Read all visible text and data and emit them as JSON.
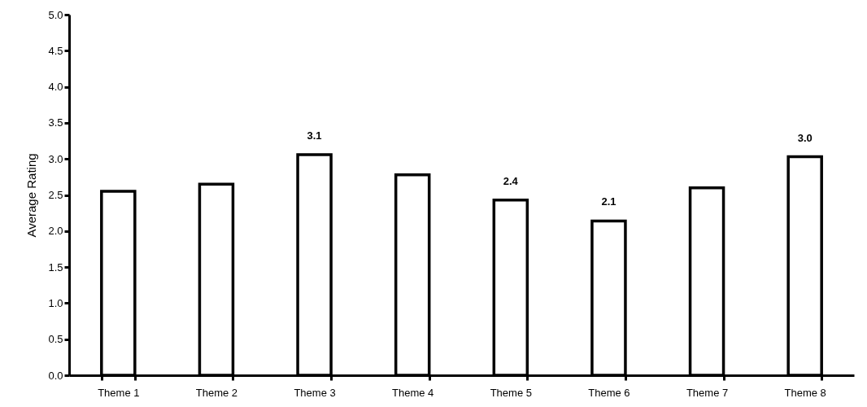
{
  "chart_data": {
    "type": "bar",
    "ylabel": "Average Rating",
    "categories": [
      "Theme 1",
      "Theme 2",
      "Theme 3",
      "Theme 4",
      "Theme 5",
      "Theme 6",
      "Theme 7",
      "Theme 8"
    ],
    "values": [
      2.55,
      2.65,
      3.06,
      2.78,
      2.43,
      2.14,
      2.6,
      3.03
    ],
    "value_labels": [
      null,
      null,
      "3.1",
      null,
      "2.4",
      "2.1",
      null,
      "3.0"
    ],
    "color": "#ffffff",
    "ylim": [
      0,
      5
    ],
    "yticks": [
      {
        "value": 0,
        "label": "0.0"
      },
      {
        "value": 0.5,
        "label": "0.5"
      },
      {
        "value": 1,
        "label": "1.0"
      },
      {
        "value": 1.5,
        "label": "1.5"
      },
      {
        "value": 2,
        "label": "2.0"
      },
      {
        "value": 2.5,
        "label": "2.5"
      },
      {
        "value": 3,
        "label": "3.0"
      },
      {
        "value": 3.5,
        "label": "3.5"
      },
      {
        "value": 4,
        "label": "4.0"
      },
      {
        "value": 4.5,
        "label": "4.5"
      },
      {
        "value": 5,
        "label": "5.0"
      }
    ],
    "grid": false
  }
}
